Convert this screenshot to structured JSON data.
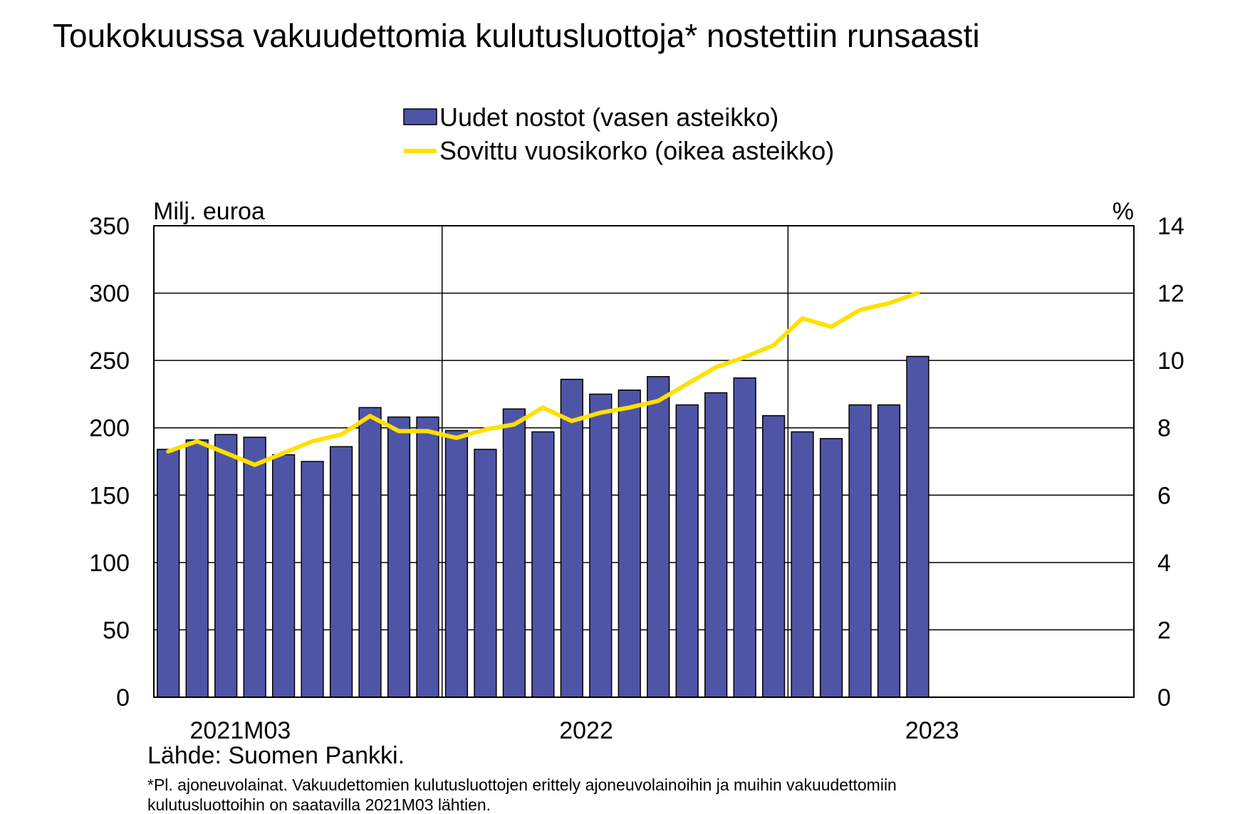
{
  "title": "Toukokuussa vakuudettomia kulutusluottoja* nostettiin runsaasti",
  "legend": {
    "bars": "Uudet nostot (vasen asteikko)",
    "line": "Sovittu vuosikorko (oikea asteikko)"
  },
  "left_unit": "Milj. euroa",
  "right_unit": "%",
  "source": "Lähde: Suomen Pankki.",
  "note_lines": [
    "*Pl. ajoneuvolainat. Vakuudettomien kulutusluottojen erittely ajoneuvolainoihin ja muihin vakuudettomiin",
    "kulutusluottoihin on saatavilla 2021M03 lähtien."
  ],
  "colors": {
    "bars": "#4F55A6",
    "line": "#FFE000",
    "grid": "#000000"
  },
  "chart_data": {
    "type": "bar",
    "x_labels": [
      "2021M03",
      "2022",
      "2023"
    ],
    "left_axis": {
      "min": 0,
      "max": 350,
      "ticks": [
        0,
        50,
        100,
        150,
        200,
        250,
        300,
        350
      ]
    },
    "right_axis": {
      "min": 0,
      "max": 14,
      "ticks": [
        0,
        2,
        4,
        6,
        8,
        10,
        12,
        14
      ]
    },
    "slots": 34,
    "year_divider_slots": [
      10,
      22
    ],
    "label_slots": [
      3,
      15,
      27
    ],
    "series": [
      {
        "name": "Uudet nostot (vasen asteikko)",
        "type": "bar",
        "axis": "left",
        "values": [
          184,
          191,
          195,
          193,
          180,
          175,
          186,
          215,
          208,
          208,
          198,
          184,
          214,
          197,
          236,
          225,
          228,
          238,
          217,
          226,
          237,
          209,
          197,
          192,
          217,
          217,
          253
        ]
      },
      {
        "name": "Sovittu vuosikorko (oikea asteikko)",
        "type": "line",
        "axis": "right",
        "values": [
          7.3,
          7.6,
          7.25,
          6.9,
          7.25,
          7.6,
          7.8,
          8.35,
          7.9,
          7.9,
          7.7,
          7.95,
          8.1,
          8.6,
          8.2,
          8.45,
          8.6,
          8.8,
          9.3,
          9.8,
          10.1,
          10.45,
          11.25,
          11.0,
          11.5,
          11.7,
          12.0
        ]
      }
    ],
    "grid": true,
    "legend_position": "top-center"
  }
}
